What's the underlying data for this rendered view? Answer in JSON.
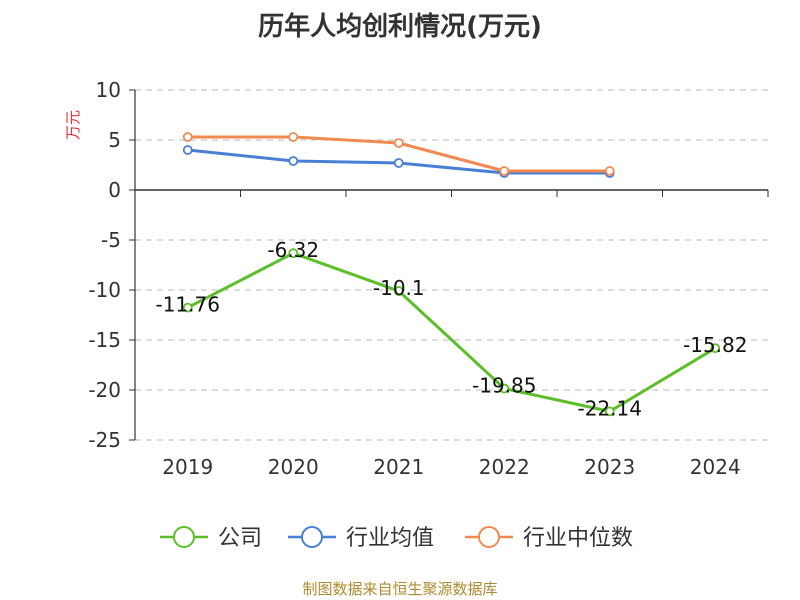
{
  "chart_data": {
    "type": "line",
    "title": "历年人均创利情况(万元)",
    "ylabel": "万元",
    "categories": [
      "2019",
      "2020",
      "2021",
      "2022",
      "2023",
      "2024"
    ],
    "ylim": [
      -25,
      10
    ],
    "yticks": [
      10,
      5,
      0,
      -5,
      -10,
      -15,
      -20,
      -25
    ],
    "grid": true,
    "legend_position": "bottom",
    "series": [
      {
        "name": "公司",
        "color": "#5cbf2a",
        "values": [
          -11.76,
          -6.32,
          -10.1,
          -19.85,
          -22.14,
          -15.82
        ],
        "labels": [
          "-11.76",
          "-6.32",
          "-10.1",
          "-19.85",
          "-22.14",
          "-15.82"
        ]
      },
      {
        "name": "行业均值",
        "color": "#4a7fd6",
        "values": [
          4.0,
          2.9,
          2.7,
          1.7,
          1.7,
          null
        ]
      },
      {
        "name": "行业中位数",
        "color": "#f08a50",
        "values": [
          5.3,
          5.3,
          4.7,
          1.9,
          1.9,
          null
        ]
      }
    ]
  },
  "source_text": "制图数据来自恒生聚源数据库"
}
